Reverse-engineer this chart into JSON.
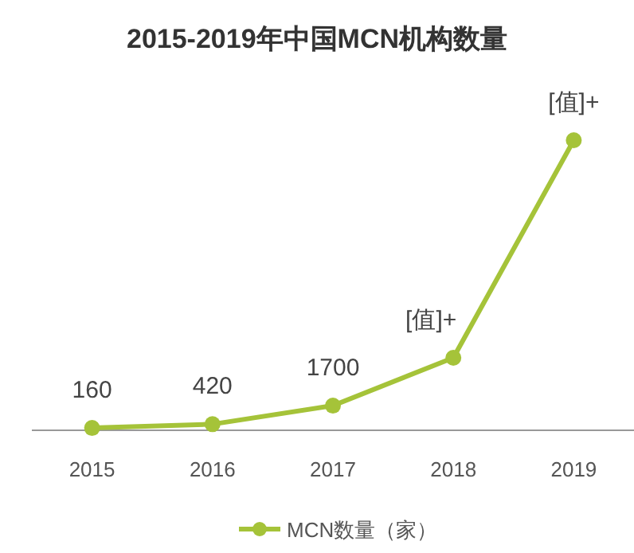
{
  "chart_data": {
    "type": "line",
    "title": "2015-2019年中国MCN机构数量",
    "categories": [
      "2015",
      "2016",
      "2017",
      "2018",
      "2019"
    ],
    "series": [
      {
        "name": "MCN数量（家）",
        "color": "#a5c339",
        "values": [
          160,
          420,
          1700,
          5000,
          20000
        ],
        "value_labels": [
          "160",
          "420",
          "1700",
          "[值]+",
          "[值]+"
        ]
      }
    ],
    "marker": "circle",
    "legend": "bottom"
  }
}
